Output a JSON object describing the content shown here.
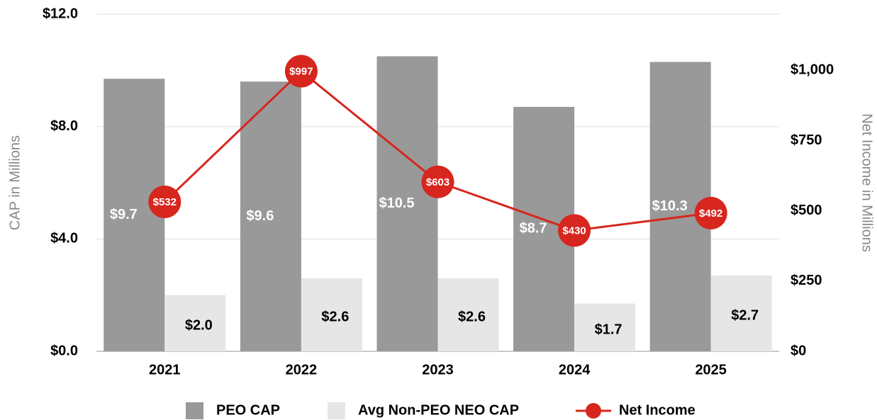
{
  "chart_data": {
    "type": "bar",
    "categories": [
      "2021",
      "2022",
      "2023",
      "2024",
      "2025"
    ],
    "series": [
      {
        "name": "PEO CAP",
        "color": "#999999",
        "values": [
          9.7,
          9.6,
          10.5,
          8.7,
          10.3
        ],
        "value_labels": [
          "$9.7",
          "$9.6",
          "$10.5",
          "$8.7",
          "$10.3"
        ]
      },
      {
        "name": "Avg Non-PEO NEO CAP",
        "color": "#e6e6e6",
        "values": [
          2.0,
          2.6,
          2.6,
          1.7,
          2.7
        ],
        "value_labels": [
          "$2.0",
          "$2.6",
          "$2.6",
          "$1.7",
          "$2.7"
        ]
      },
      {
        "name": "Net Income",
        "type": "line",
        "axis": "y2",
        "color": "#d7261e",
        "values": [
          532,
          997,
          603,
          430,
          492
        ],
        "value_labels": [
          "$532",
          "$997",
          "$603",
          "$430",
          "$492"
        ]
      }
    ],
    "ylabel": "CAP in Millions",
    "y2label": "Net Income in Millions",
    "ylim": [
      0,
      12
    ],
    "yticks": [
      {
        "value": 0,
        "label": "$0.0"
      },
      {
        "value": 4,
        "label": "$4.0"
      },
      {
        "value": 8,
        "label": "$8.0"
      },
      {
        "value": 12,
        "label": "$12.0"
      }
    ],
    "y2lim": [
      0,
      1200
    ],
    "y2ticks": [
      {
        "value": 0,
        "label": "$0"
      },
      {
        "value": 250,
        "label": "$250"
      },
      {
        "value": 500,
        "label": "$500"
      },
      {
        "value": 750,
        "label": "$750"
      },
      {
        "value": 1000,
        "label": "$1,000"
      }
    ],
    "grid": true,
    "legend": "bottom"
  }
}
